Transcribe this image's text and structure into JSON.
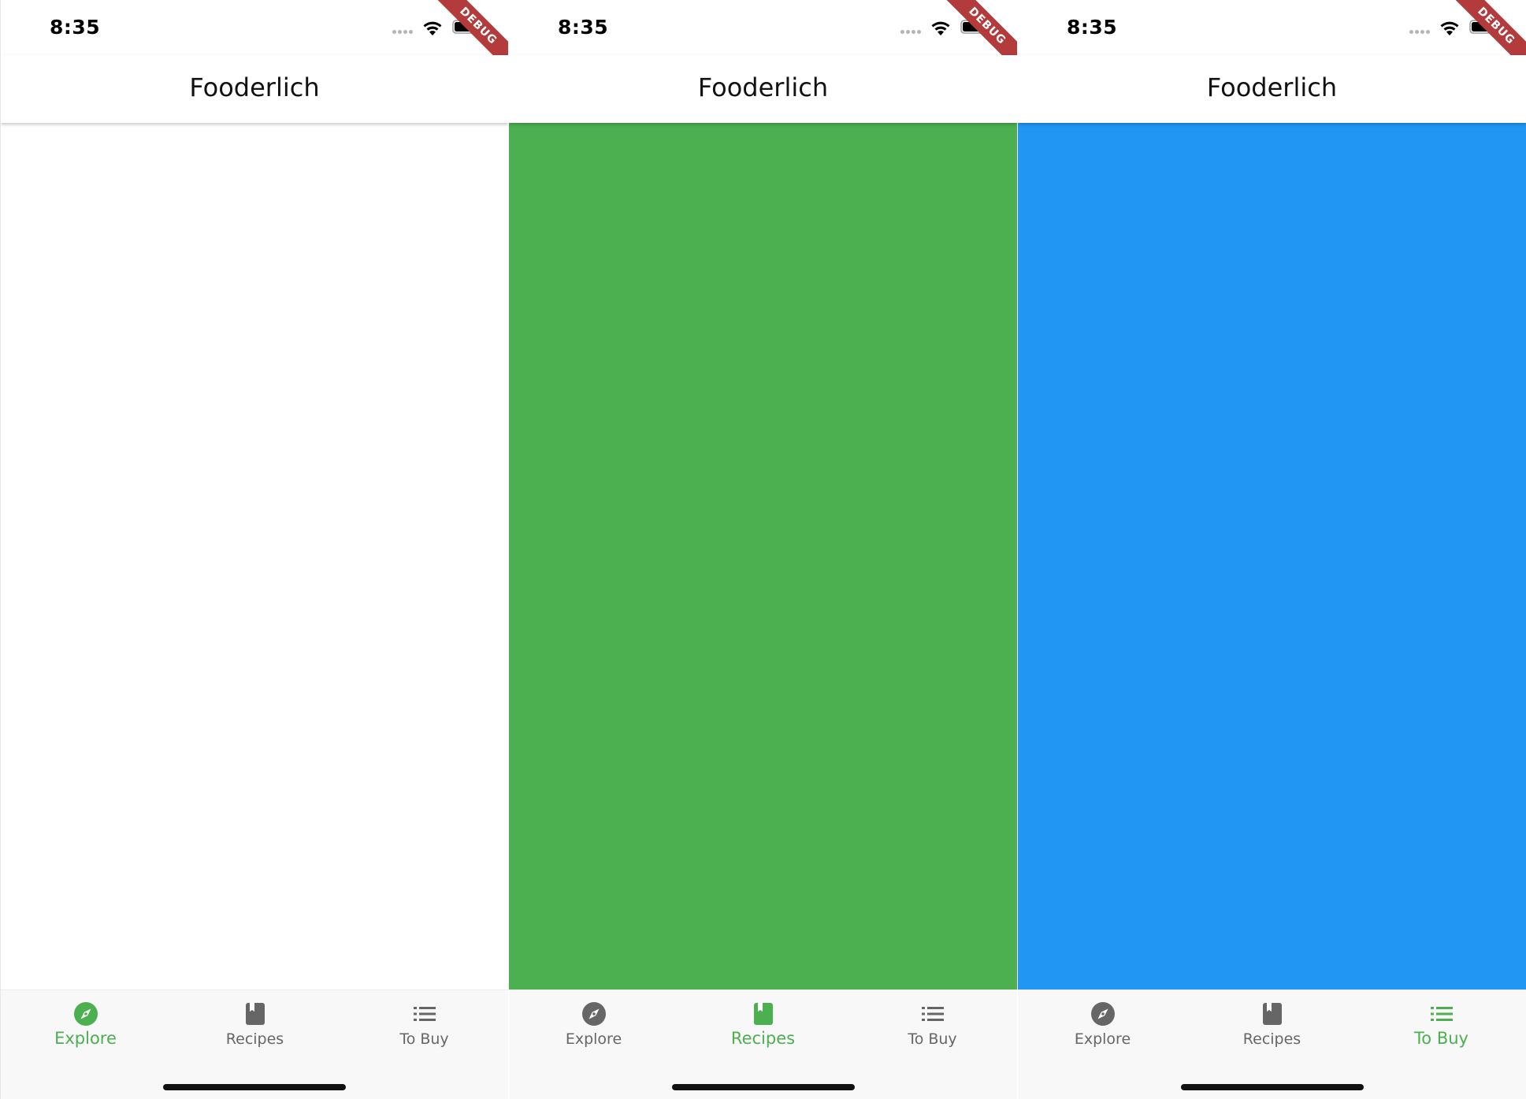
{
  "screens": [
    {
      "status_time": "8:35",
      "debug_label": "DEBUG",
      "app_title": "Fooderlich",
      "body_color": "#ffffff",
      "active_tab": 0,
      "tabs": [
        {
          "label": "Explore",
          "icon": "explore-icon"
        },
        {
          "label": "Recipes",
          "icon": "book-icon"
        },
        {
          "label": "To Buy",
          "icon": "list-icon"
        }
      ]
    },
    {
      "status_time": "8:35",
      "debug_label": "DEBUG",
      "app_title": "Fooderlich",
      "body_color": "#4caf50",
      "active_tab": 1,
      "tabs": [
        {
          "label": "Explore",
          "icon": "explore-icon"
        },
        {
          "label": "Recipes",
          "icon": "book-icon"
        },
        {
          "label": "To Buy",
          "icon": "list-icon"
        }
      ]
    },
    {
      "status_time": "8:35",
      "debug_label": "DEBUG",
      "app_title": "Fooderlich",
      "body_color": "#2196f3",
      "active_tab": 2,
      "tabs": [
        {
          "label": "Explore",
          "icon": "explore-icon"
        },
        {
          "label": "Recipes",
          "icon": "book-icon"
        },
        {
          "label": "To Buy",
          "icon": "list-icon"
        }
      ]
    }
  ],
  "colors": {
    "active": "#4caf50",
    "inactive": "#666666",
    "debug_ribbon": "#b33b3b"
  }
}
